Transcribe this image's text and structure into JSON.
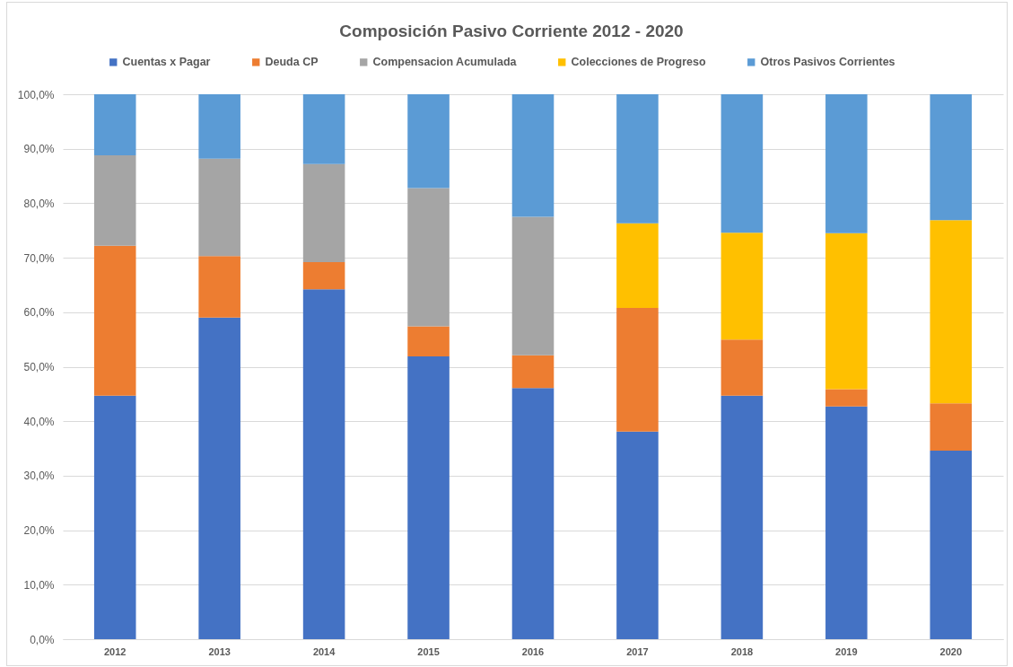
{
  "chart_data": {
    "type": "bar",
    "title": "Composición Pasivo Corriente 2012 - 2020",
    "categories": [
      "2012",
      "2013",
      "2014",
      "2015",
      "2016",
      "2017",
      "2018",
      "2019",
      "2020"
    ],
    "series": [
      {
        "name": "Cuentas x Pagar",
        "color": "#4472c4",
        "values": [
          44.7,
          59.0,
          64.2,
          51.9,
          46.1,
          38.1,
          44.7,
          42.7,
          34.6
        ]
      },
      {
        "name": "Deuda CP",
        "color": "#ed7d31",
        "values": [
          27.5,
          11.3,
          5.0,
          5.5,
          6.0,
          22.7,
          10.3,
          3.2,
          8.7
        ]
      },
      {
        "name": "Compensacion Acumulada",
        "color": "#a5a5a5",
        "values": [
          16.6,
          17.9,
          18.0,
          25.4,
          25.4,
          null,
          null,
          null,
          null
        ]
      },
      {
        "name": "Colecciones de Progreso",
        "color": "#ffc000",
        "values": [
          null,
          null,
          null,
          null,
          null,
          15.5,
          19.6,
          28.6,
          33.6
        ]
      },
      {
        "name": "Otros Pasivos Corrientes",
        "color": "#5b9bd5",
        "values": [
          11.2,
          11.8,
          12.8,
          17.2,
          22.5,
          23.7,
          25.4,
          25.5,
          23.1
        ]
      }
    ],
    "stacked": true,
    "ylim": [
      0,
      100
    ],
    "yticks": [
      {
        "value": 0,
        "label": "0,0%"
      },
      {
        "value": 10,
        "label": "10,0%"
      },
      {
        "value": 20,
        "label": "20,0%"
      },
      {
        "value": 30,
        "label": "30,0%"
      },
      {
        "value": 40,
        "label": "40,0%"
      },
      {
        "value": 50,
        "label": "50,0%"
      },
      {
        "value": 60,
        "label": "60,0%"
      },
      {
        "value": 70,
        "label": "70,0%"
      },
      {
        "value": 80,
        "label": "80,0%"
      },
      {
        "value": 90,
        "label": "90,0%"
      },
      {
        "value": 100,
        "label": "100,0%"
      }
    ],
    "grid": "y",
    "legend": "top"
  }
}
